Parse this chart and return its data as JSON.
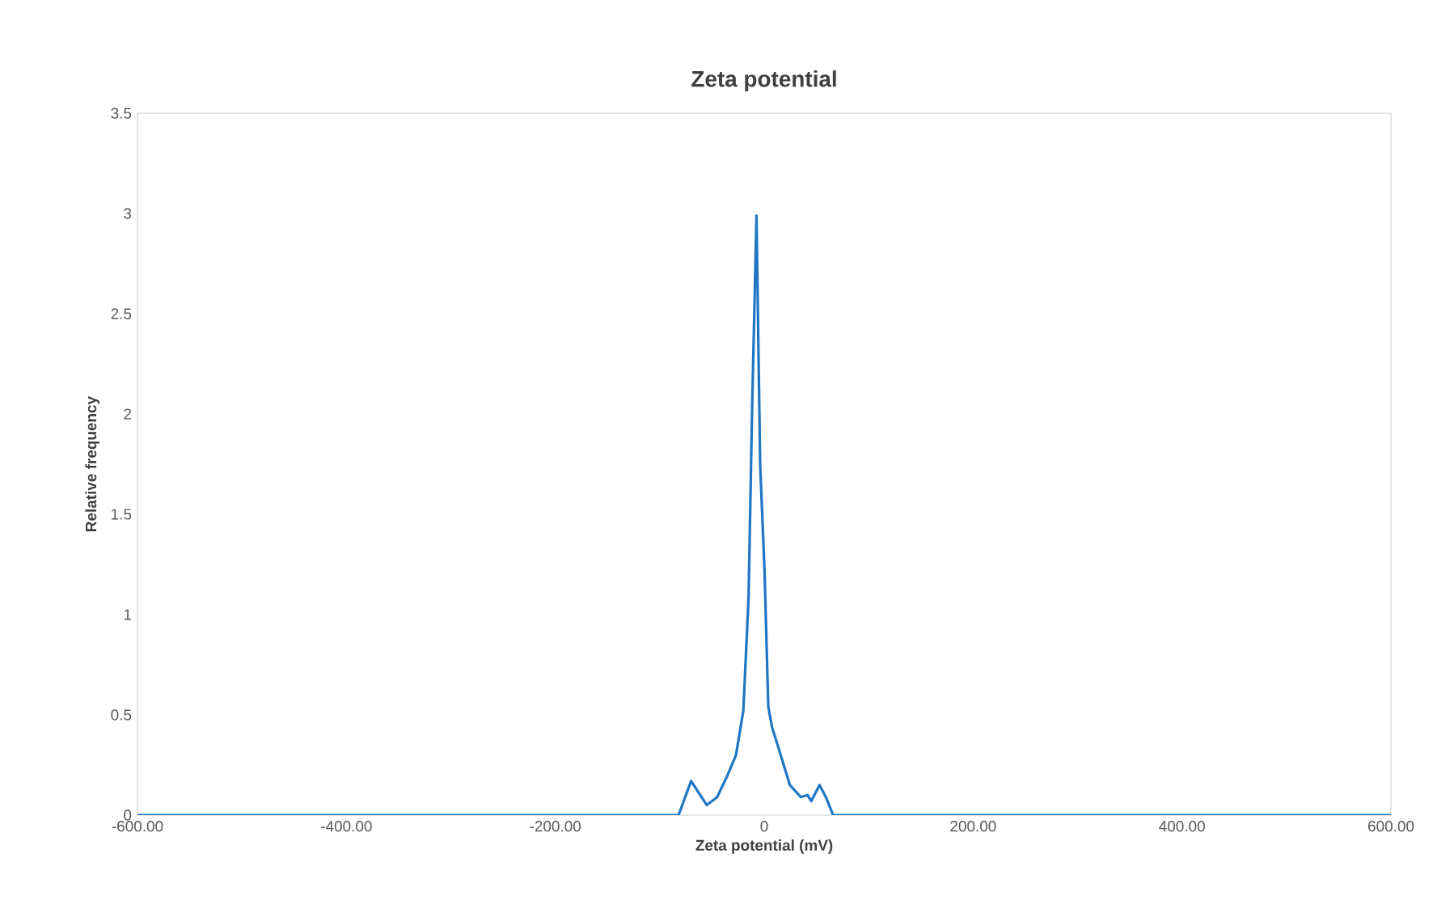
{
  "chart_data": {
    "type": "line",
    "title": "Zeta potential",
    "xlabel": "Zeta potential (mV)",
    "ylabel": "Relative frequency",
    "x": [
      -600,
      -82,
      -70,
      -55,
      -45,
      -35,
      -27,
      -20,
      -15,
      -11.6,
      -7.4,
      -3.9,
      0.3,
      3.9,
      7.4,
      14,
      24.5,
      35,
      41.5,
      45,
      53,
      59,
      66,
      600
    ],
    "series": [
      {
        "color": "#1f77c4",
        "values": [
          0,
          0,
          0.17,
          0.05,
          0.09,
          0.2,
          0.3,
          0.52,
          1.08,
          2.02,
          2.99,
          1.75,
          1.22,
          0.54,
          0.44,
          0.33,
          0.15,
          0.09,
          0.1,
          0.07,
          0.15,
          0.09,
          0,
          0
        ]
      }
    ],
    "xlim": [
      -600,
      600
    ],
    "xticks": [
      {
        "value": -600,
        "label": "-600.00"
      },
      {
        "value": -400,
        "label": "-400.00"
      },
      {
        "value": -200,
        "label": "-200.00"
      },
      {
        "value": 0,
        "label": "0"
      },
      {
        "value": 200,
        "label": "200.00"
      },
      {
        "value": 400,
        "label": "400.00"
      },
      {
        "value": 600,
        "label": "600.00"
      }
    ],
    "ylim": [
      0,
      3.5
    ],
    "yticks": [
      0,
      0.5,
      1,
      1.5,
      2,
      2.5,
      3,
      3.5
    ],
    "grid": false,
    "marker": "none",
    "line_style": "solid"
  }
}
